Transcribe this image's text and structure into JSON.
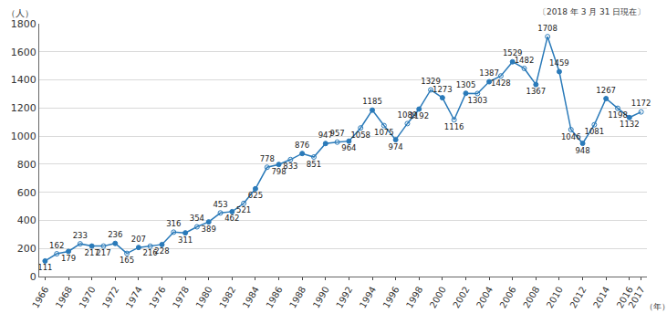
{
  "chart_data": {
    "type": "line",
    "y_label": "（人）",
    "x_label": "（年）",
    "annotations": [
      "〔2018 年 3 月 31 日現在〕"
    ],
    "x": [
      1966,
      1967,
      1968,
      1969,
      1970,
      1971,
      1972,
      1973,
      1974,
      1975,
      1976,
      1977,
      1978,
      1979,
      1980,
      1981,
      1982,
      1983,
      1984,
      1985,
      1986,
      1987,
      1988,
      1989,
      1990,
      1991,
      1992,
      1993,
      1994,
      1995,
      1996,
      1997,
      1998,
      1999,
      2000,
      2001,
      2002,
      2003,
      2004,
      2005,
      2006,
      2007,
      2008,
      2009,
      2010,
      2011,
      2012,
      2013,
      2014,
      2015,
      2016,
      2017
    ],
    "values": [
      111,
      162,
      179,
      233,
      217,
      217,
      236,
      165,
      207,
      216,
      228,
      316,
      311,
      354,
      389,
      453,
      462,
      521,
      625,
      778,
      798,
      833,
      876,
      851,
      947,
      957,
      964,
      1058,
      1185,
      1075,
      974,
      1089,
      1192,
      1329,
      1273,
      1116,
      1305,
      1303,
      1387,
      1428,
      1529,
      1482,
      1367,
      1708,
      1459,
      1046,
      948,
      1081,
      1267,
      1198,
      1132,
      1172
    ],
    "color": "#2a7ab9",
    "marker": "circle",
    "line_style": "solid",
    "data_labels": true,
    "grid": true,
    "xlim": [
      1965.5,
      2017.5
    ],
    "xticks": [
      1966,
      1968,
      1970,
      1972,
      1974,
      1976,
      1978,
      1980,
      1982,
      1984,
      1986,
      1988,
      1990,
      1992,
      1994,
      1996,
      1998,
      2000,
      2002,
      2004,
      2006,
      2008,
      2010,
      2012,
      2014,
      2016,
      2017
    ],
    "ylim": [
      0,
      1800
    ],
    "yticks": [
      0,
      200,
      400,
      600,
      800,
      1000,
      1200,
      1400,
      1600,
      1800
    ]
  }
}
